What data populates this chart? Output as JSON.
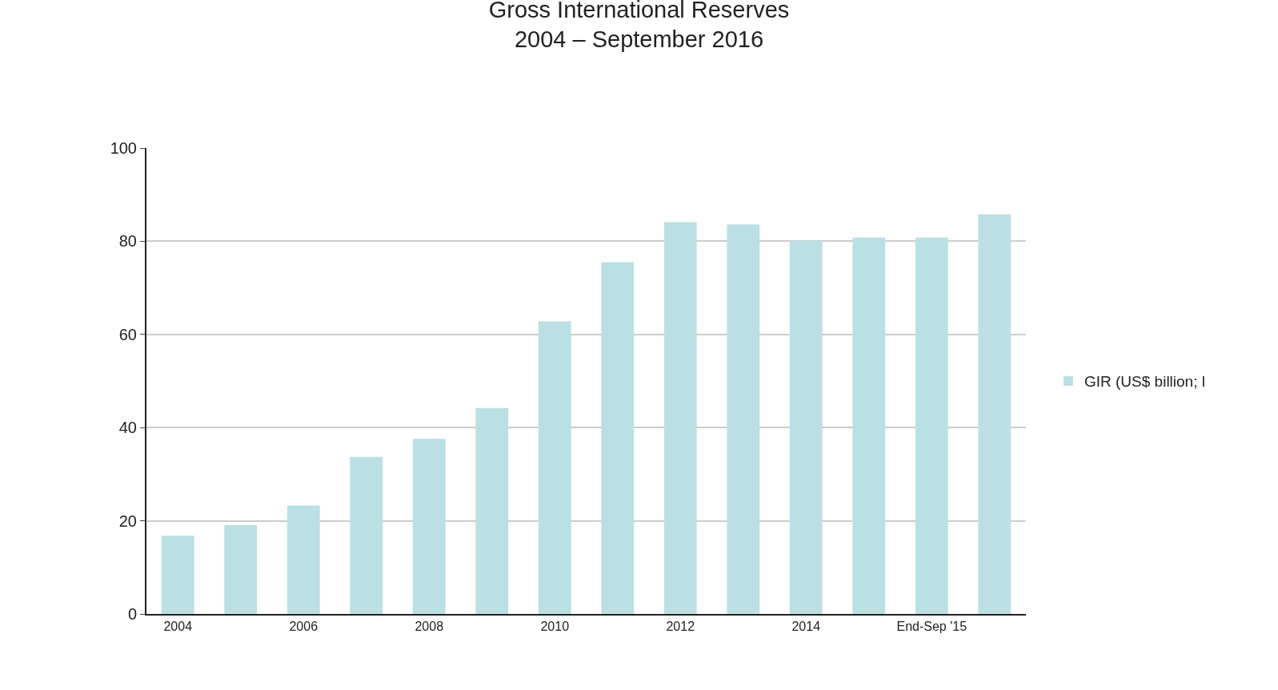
{
  "chart_data": {
    "type": "bar",
    "title": "Gross International Reserves\n2004 – September 2016",
    "categories": [
      "2004",
      null,
      "2006",
      null,
      "2008",
      null,
      "2010",
      null,
      "2012",
      null,
      "2014",
      null,
      "End-Sep '15",
      null
    ],
    "series": [
      {
        "name": "GIR (US$ billion; l",
        "color": "#bbe0e3",
        "values": [
          16.8,
          19.1,
          23.3,
          33.7,
          37.6,
          44.2,
          62.8,
          75.5,
          84.1,
          83.6,
          80.1,
          80.8,
          80.8,
          85.8
        ]
      }
    ],
    "ylim": [
      0,
      100
    ],
    "yticks": [
      0,
      20,
      40,
      60,
      80,
      100
    ],
    "grid": "y",
    "legend": "right"
  }
}
